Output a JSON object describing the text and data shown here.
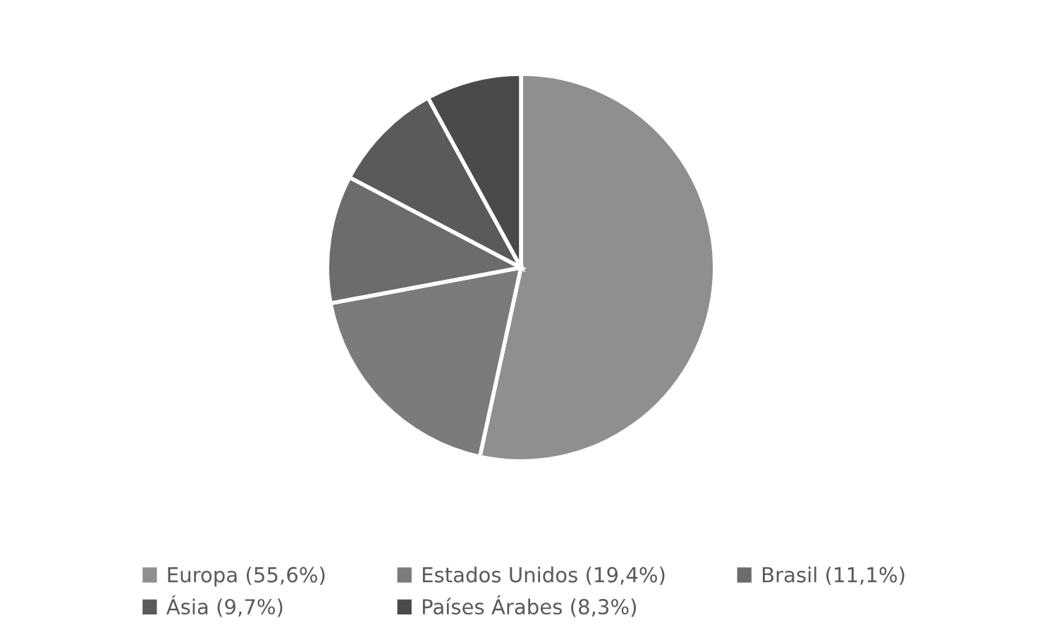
{
  "chart_data": {
    "type": "pie",
    "categories": [
      "Europa (55,6%)",
      "Estados Unidos (19,4%)",
      "Brasil (11,1%)",
      "Ásia (9,7%)",
      "Países Árabes (8,3%)"
    ],
    "values": [
      55.6,
      19.4,
      11.1,
      9.7,
      8.3
    ],
    "colors": [
      "#8f8f8f",
      "#7b7b7b",
      "#6c6c6c",
      "#5a5a5a",
      "#4a4a4a"
    ],
    "legend": "bottom"
  }
}
